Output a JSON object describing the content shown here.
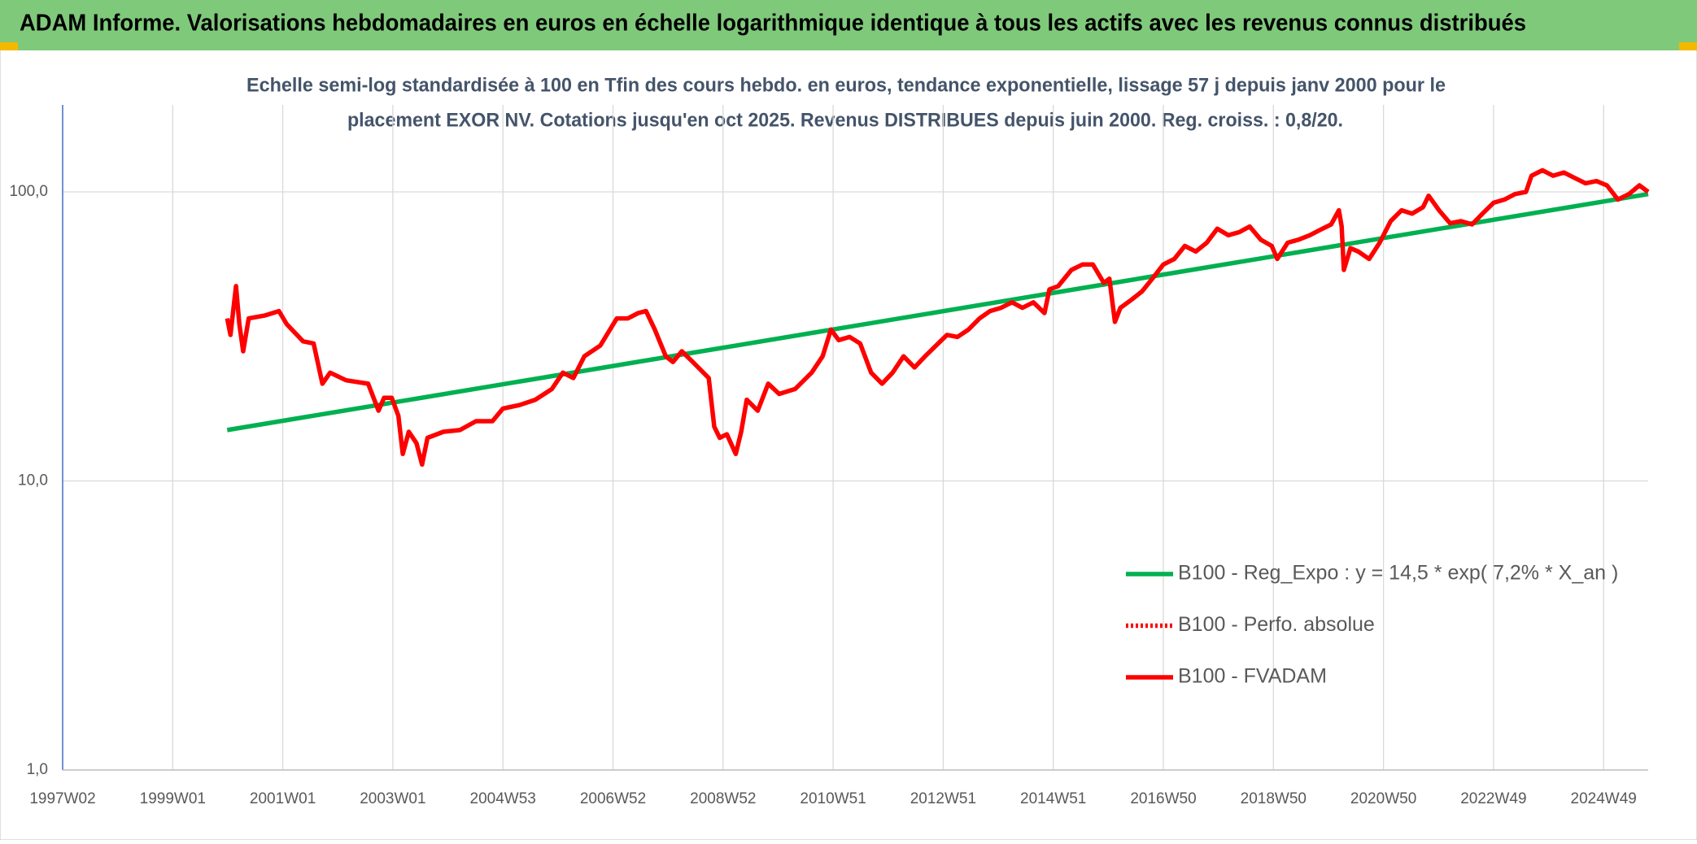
{
  "chart_data": {
    "type": "line",
    "title": "ADAM Informe. Valorisations hebdomadaires en euros en échelle logarithmique identique à tous les actifs avec les revenus connus distribués",
    "subtitle": [
      "Echelle semi-log standardisée à 100 en Tfin des cours hebdo. en euros, tendance exponentielle, lissage 57 j depuis janv 2000 pour le",
      "placement EXOR NV. Cotations jusqu'en oct 2025. Revenus DISTRIBUES depuis juin 2000. Reg. croiss. : 0,8/20."
    ],
    "log_scale": true,
    "grid": true,
    "legend": "right",
    "xlim": [
      1997.02,
      2025.83
    ],
    "xticks": [
      {
        "value": 1997.02,
        "label": "1997W02"
      },
      {
        "value": 1999.02,
        "label": "1999W01"
      },
      {
        "value": 2001.02,
        "label": "2001W01"
      },
      {
        "value": 2003.02,
        "label": "2003W01"
      },
      {
        "value": 2005.02,
        "label": "2004W53"
      },
      {
        "value": 2007.02,
        "label": "2006W52"
      },
      {
        "value": 2009.02,
        "label": "2008W52"
      },
      {
        "value": 2011.02,
        "label": "2010W51"
      },
      {
        "value": 2013.02,
        "label": "2012W51"
      },
      {
        "value": 2015.02,
        "label": "2014W51"
      },
      {
        "value": 2017.02,
        "label": "2016W50"
      },
      {
        "value": 2019.02,
        "label": "2018W50"
      },
      {
        "value": 2021.02,
        "label": "2020W50"
      },
      {
        "value": 2023.02,
        "label": "2022W49"
      },
      {
        "value": 2025.02,
        "label": "2024W49"
      }
    ],
    "ylim": [
      1,
      200
    ],
    "yticks": [
      {
        "value": 1,
        "label": "1,0"
      },
      {
        "value": 10,
        "label": "10,0"
      },
      {
        "value": 100,
        "label": "100,0"
      }
    ],
    "series": [
      {
        "name": "B100 - Reg_Expo : y = 14,5 * exp( 7,2% *  X_an )",
        "color": "#00b050",
        "style": "solid",
        "x": [
          2000.01,
          2025.83
        ],
        "values": [
          15.0,
          98.3
        ]
      },
      {
        "name": "B100 - Perfo. absolue",
        "color": "#ff0000",
        "style": "dotted"
      },
      {
        "name": "B100 - FVADAM",
        "color": "#ff0000",
        "style": "solid",
        "x": [
          2000.01,
          2000.07,
          2000.17,
          2000.23,
          2000.3,
          2000.4,
          2000.7,
          2000.95,
          2001.09,
          2001.39,
          2001.58,
          2001.74,
          2001.88,
          2002.17,
          2002.57,
          2002.76,
          2002.86,
          2003.0,
          2003.12,
          2003.2,
          2003.31,
          2003.45,
          2003.55,
          2003.65,
          2003.94,
          2004.24,
          2004.53,
          2004.83,
          2005.02,
          2005.32,
          2005.61,
          2005.91,
          2006.11,
          2006.3,
          2006.5,
          2006.79,
          2007.09,
          2007.29,
          2007.48,
          2007.62,
          2007.78,
          2007.98,
          2008.11,
          2008.27,
          2008.47,
          2008.76,
          2008.86,
          2008.96,
          2009.09,
          2009.25,
          2009.35,
          2009.45,
          2009.65,
          2009.84,
          2010.04,
          2010.33,
          2010.63,
          2010.83,
          2010.98,
          2011.12,
          2011.32,
          2011.51,
          2011.71,
          2011.91,
          2012.1,
          2012.3,
          2012.5,
          2012.69,
          2012.89,
          2013.09,
          2013.28,
          2013.48,
          2013.68,
          2013.87,
          2014.07,
          2014.27,
          2014.46,
          2014.66,
          2014.86,
          2014.95,
          2015.11,
          2015.35,
          2015.55,
          2015.74,
          2015.94,
          2016.04,
          2016.14,
          2016.24,
          2016.43,
          2016.63,
          2016.82,
          2017.02,
          2017.22,
          2017.41,
          2017.61,
          2017.81,
          2018.0,
          2018.2,
          2018.4,
          2018.59,
          2018.79,
          2018.99,
          2019.09,
          2019.28,
          2019.48,
          2019.68,
          2019.87,
          2020.07,
          2020.21,
          2020.26,
          2020.3,
          2020.42,
          2020.56,
          2020.76,
          2020.95,
          2021.15,
          2021.35,
          2021.54,
          2021.74,
          2021.84,
          2022.03,
          2022.23,
          2022.43,
          2022.63,
          2022.82,
          2023.02,
          2023.22,
          2023.41,
          2023.61,
          2023.71,
          2023.91,
          2024.1,
          2024.3,
          2024.49,
          2024.69,
          2024.89,
          2025.08,
          2025.28,
          2025.48,
          2025.67,
          2025.83
        ],
        "values": [
          36.5,
          32.0,
          47.2,
          34.9,
          28.1,
          36.5,
          37.4,
          38.7,
          34.9,
          30.4,
          29.9,
          21.7,
          23.7,
          22.3,
          21.7,
          17.5,
          19.4,
          19.4,
          16.8,
          12.4,
          14.8,
          13.5,
          11.4,
          14.1,
          14.8,
          15.0,
          16.1,
          16.1,
          17.8,
          18.3,
          19.1,
          20.8,
          23.7,
          22.7,
          27.0,
          29.4,
          36.5,
          36.5,
          38.1,
          38.7,
          33.4,
          27.0,
          25.8,
          28.1,
          25.8,
          22.7,
          15.4,
          14.1,
          14.5,
          12.4,
          14.8,
          19.1,
          17.5,
          21.7,
          20.0,
          20.8,
          23.7,
          27.0,
          33.4,
          30.7,
          31.5,
          29.9,
          23.7,
          21.7,
          23.7,
          27.0,
          24.7,
          27.0,
          29.4,
          32.0,
          31.5,
          33.4,
          36.5,
          38.7,
          39.7,
          41.5,
          39.7,
          41.5,
          38.1,
          46.0,
          47.2,
          53.7,
          56.1,
          56.1,
          48.4,
          50.1,
          35.5,
          39.7,
          42.2,
          45.2,
          50.1,
          56.1,
          58.6,
          65.0,
          62.2,
          66.7,
          74.6,
          70.8,
          72.6,
          75.9,
          68.4,
          65.0,
          58.6,
          66.7,
          68.4,
          70.8,
          73.9,
          77.2,
          86.4,
          75.9,
          53.7,
          63.9,
          62.2,
          58.6,
          66.7,
          79.2,
          86.4,
          84.1,
          88.6,
          97,
          86.4,
          77.9,
          79.2,
          77.2,
          84.1,
          91.7,
          94.1,
          98.3,
          100,
          113.8,
          118.8,
          113.8,
          116.7,
          111.9,
          107.1,
          109,
          105.3,
          94.1,
          98.3,
          105.3,
          100
        ]
      }
    ]
  }
}
